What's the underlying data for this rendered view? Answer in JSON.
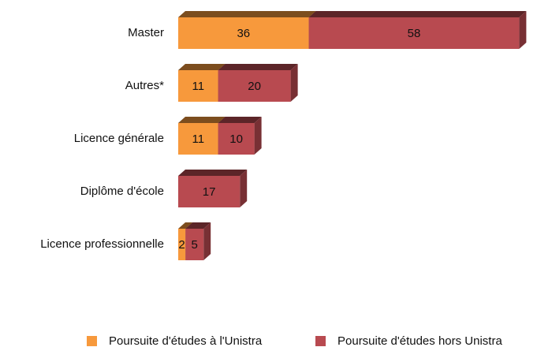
{
  "chart_data": {
    "type": "bar",
    "orientation": "horizontal",
    "stacked": true,
    "categories": [
      "Master",
      "Autres*",
      "Licence générale",
      "Diplôme d'école",
      "Licence professionnelle"
    ],
    "series": [
      {
        "name": "Poursuite d'études à l'Unistra",
        "color": "#f7993c",
        "values": [
          36,
          11,
          11,
          null,
          2
        ]
      },
      {
        "name": "Poursuite d'études hors Unistra",
        "color": "#b84a50",
        "values": [
          58,
          20,
          10,
          17,
          5
        ]
      }
    ],
    "legend": "bottom"
  }
}
